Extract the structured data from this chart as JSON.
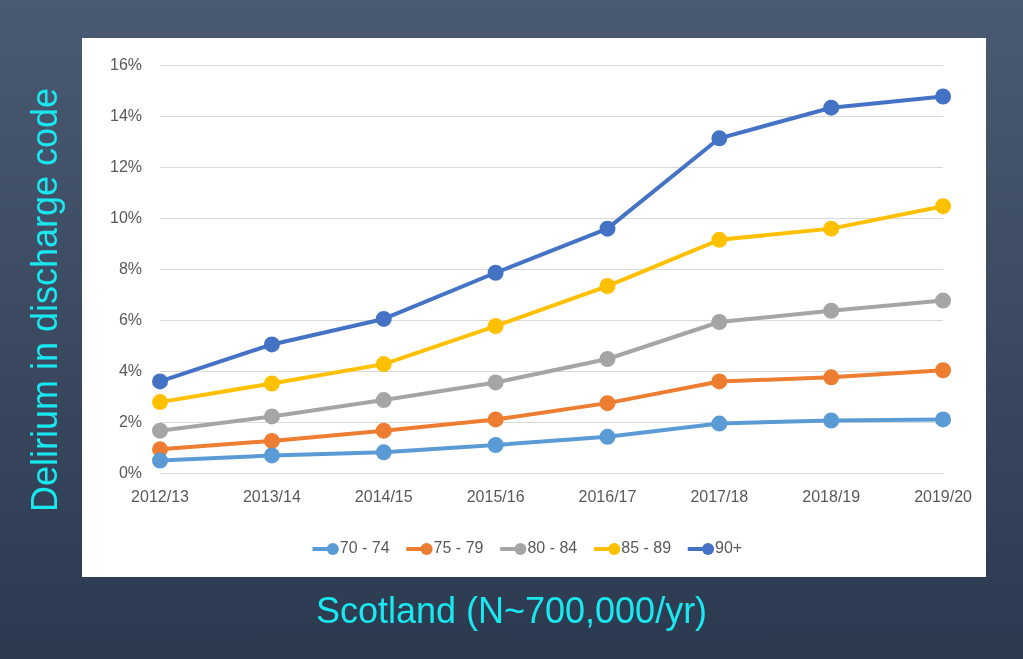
{
  "chart_data": {
    "type": "line",
    "xlabel": "Scotland (N~700,000/yr)",
    "ylabel": "Delirium in discharge code",
    "categories": [
      "2012/13",
      "2013/14",
      "2014/15",
      "2015/16",
      "2016/17",
      "2017/18",
      "2018/19",
      "2019/20"
    ],
    "series": [
      {
        "name": "70 - 74",
        "color": "#5b9bd5",
        "values": [
          0.52,
          0.72,
          0.84,
          1.13,
          1.45,
          1.97,
          2.09,
          2.13
        ]
      },
      {
        "name": "75 - 79",
        "color": "#ed7d31",
        "values": [
          0.96,
          1.29,
          1.69,
          2.13,
          2.77,
          3.62,
          3.78,
          4.06
        ]
      },
      {
        "name": "80 - 84",
        "color": "#a5a5a5",
        "values": [
          1.69,
          2.25,
          2.89,
          3.58,
          4.5,
          5.95,
          6.39,
          6.79
        ]
      },
      {
        "name": "85 - 89",
        "color": "#ffc000",
        "values": [
          2.81,
          3.54,
          4.3,
          5.79,
          7.36,
          9.17,
          9.61,
          10.49
        ]
      },
      {
        "name": "90+",
        "color": "#4472c4",
        "values": [
          3.62,
          5.07,
          6.07,
          7.88,
          9.61,
          13.15,
          14.35,
          14.79
        ]
      }
    ],
    "ylim": [
      0,
      16
    ],
    "yticks": [
      {
        "value": 0,
        "label": "0%"
      },
      {
        "value": 2,
        "label": "2%"
      },
      {
        "value": 4,
        "label": "4%"
      },
      {
        "value": 6,
        "label": "6%"
      },
      {
        "value": 8,
        "label": "8%"
      },
      {
        "value": 10,
        "label": "10%"
      },
      {
        "value": 12,
        "label": "12%"
      },
      {
        "value": 14,
        "label": "14%"
      },
      {
        "value": 16,
        "label": "16%"
      }
    ],
    "grid": "y",
    "legend": "bottom",
    "marker": "circle",
    "line_style": "solid"
  }
}
